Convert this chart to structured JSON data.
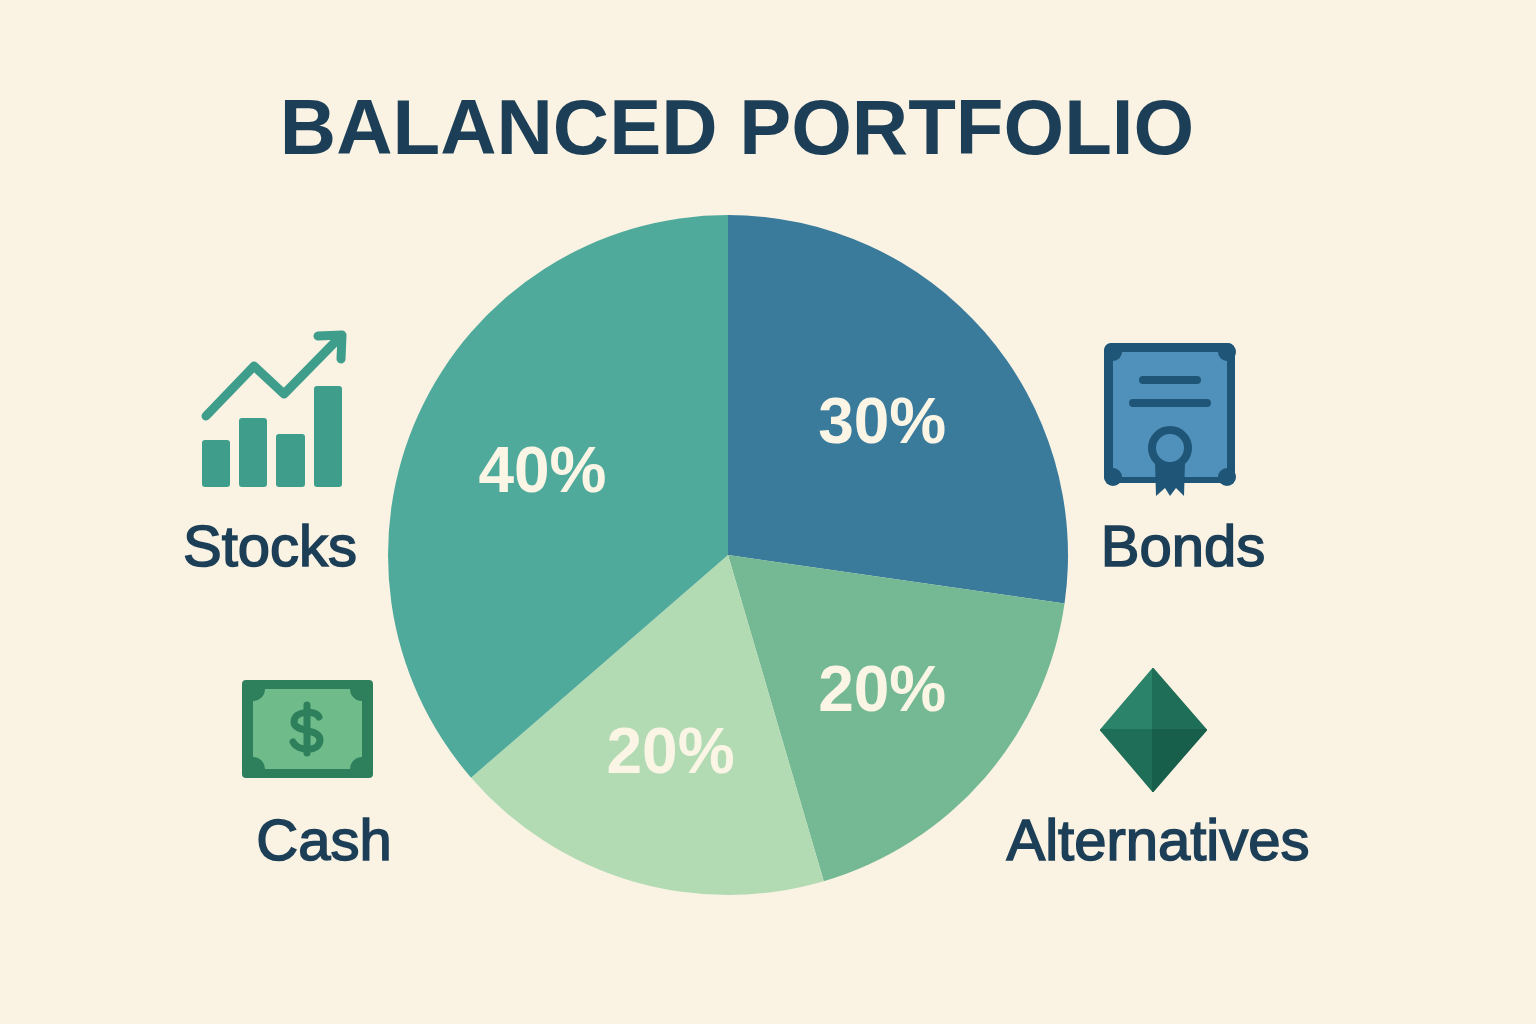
{
  "chart_data": {
    "type": "pie",
    "title": "BALANCED PORTFOLIO",
    "categories": [
      "Bonds",
      "Alternatives",
      "Cash",
      "Stocks"
    ],
    "values": [
      30,
      20,
      20,
      40
    ],
    "colors": [
      "#3a7b9c",
      "#74b993",
      "#b2dbb4",
      "#4faa9c"
    ],
    "value_labels": [
      "30%",
      "20%",
      "20%",
      "40%"
    ]
  }
}
